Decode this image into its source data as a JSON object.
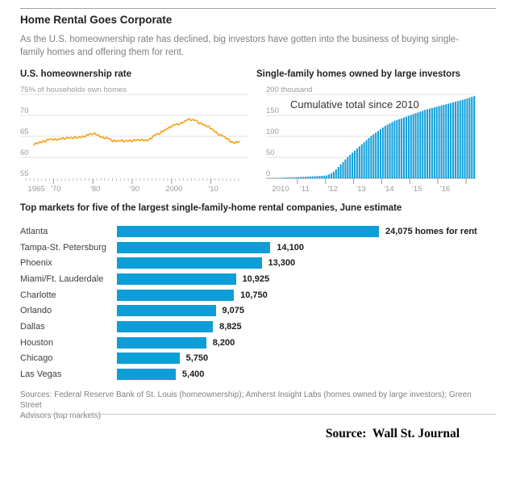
{
  "header": {
    "title": "Home Rental Goes Corporate",
    "subtitle": "As the U.S. homeownership rate has declined, big investors have gotten into the business of buying single-family homes and offering them for rent."
  },
  "colors": {
    "line_orange": "#f5a41f",
    "bar_blue": "#0d9dd8",
    "gridline": "#e2e2e2",
    "axis_gray": "#9b9b9b"
  },
  "footer": {
    "sources_line1": "Sources: Federal Reserve Bank of St. Louis (homeownership); Amherst Insight Labs (homes owned by large investors); Green Street",
    "sources_line2": "Advisors (top markets)",
    "attribution": "Source:  Wall St. Journal"
  },
  "chart_data": [
    {
      "type": "line",
      "title": "U.S. homeownership rate",
      "ylabel": "% of households own homes",
      "ylim": [
        55,
        75
      ],
      "y_ticks": [
        75,
        70,
        65,
        60,
        55
      ],
      "y_tick_labels": [
        "75% of households own homes",
        "70",
        "65",
        "60",
        "55"
      ],
      "x_tick_years": [
        1965,
        1970,
        1980,
        1990,
        2000,
        2010
      ],
      "x_tick_labels": [
        "1965",
        "'70",
        "'80",
        "'90",
        "2000",
        "'10"
      ],
      "start_year": 1965,
      "end_year": 2017,
      "frequency_note": "quarterly with seasonal wiggle",
      "annual_values": [
        63,
        63.4,
        63.6,
        63.9,
        64.3,
        64.2,
        64.2,
        64.4,
        64.5,
        64.6,
        64.6,
        64.7,
        64.8,
        65,
        65.4,
        65.6,
        65.4,
        64.8,
        64.6,
        64.5,
        63.9,
        63.8,
        64,
        63.8,
        63.9,
        63.9,
        64.1,
        64.1,
        64,
        64,
        64.7,
        65.4,
        65.7,
        66.3,
        66.8,
        67.4,
        67.8,
        67.9,
        68.3,
        69,
        68.9,
        68.8,
        68.2,
        67.8,
        67.4,
        66.9,
        66.1,
        65.4,
        65.1,
        64.5,
        63.7,
        63.4,
        63.7
      ],
      "color": "#f5a41f"
    },
    {
      "type": "bar",
      "title": "Single-family homes owned by large investors",
      "annotation": "Cumulative total since 2010",
      "ylabel": "thousand",
      "ylim": [
        0,
        200
      ],
      "y_ticks": [
        200,
        150,
        100,
        50,
        0
      ],
      "y_tick_labels": [
        "200 thousand",
        "150",
        "100",
        "50",
        "0"
      ],
      "x_tick_labels": [
        "2010",
        "'11",
        "'12",
        "'13",
        "'14",
        "'15",
        "'16"
      ],
      "start_year": 2010,
      "frequency_note": "monthly, Jan 2010 - Apr 2017",
      "values": [
        0.3,
        0.5,
        0.7,
        0.9,
        1.1,
        1.3,
        1.5,
        1.7,
        1.9,
        2.1,
        2.3,
        2.5,
        2.8,
        3.1,
        3.4,
        3.7,
        4,
        4.3,
        4.6,
        4.9,
        5.2,
        5.5,
        5.8,
        6.2,
        7,
        9,
        12,
        16,
        21,
        27,
        33,
        39,
        45,
        51,
        56,
        61,
        66,
        71,
        76,
        81,
        86,
        91,
        96,
        101,
        105,
        109,
        113,
        117,
        121,
        125,
        128,
        131,
        134,
        137,
        139,
        141,
        143,
        145,
        147,
        149,
        151,
        153,
        155,
        157,
        159,
        161,
        163,
        164.5,
        166,
        167.5,
        169,
        170.5,
        172,
        173.5,
        175,
        176.5,
        178,
        179.5,
        181,
        182.5,
        184,
        185.5,
        187,
        188.5,
        190,
        192,
        194,
        196
      ],
      "color": "#0d9dd8"
    },
    {
      "type": "hbar",
      "title": "Top markets for five of the largest single-family-home rental companies, June estimate",
      "categories": [
        "Atlanta",
        "Tampa-St. Petersburg",
        "Phoenix",
        "Miami/Ft. Lauderdale",
        "Charlotte",
        "Orlando",
        "Dallas",
        "Houston",
        "Chicago",
        "Las Vegas"
      ],
      "values": [
        24075,
        14100,
        13300,
        10925,
        10750,
        9075,
        8825,
        8200,
        5750,
        5400
      ],
      "value_labels": [
        "24,075 homes for rent",
        "14,100",
        "13,300",
        "10,925",
        "10,750",
        "9,075",
        "8,825",
        "8,200",
        "5,750",
        "5,400"
      ],
      "xlim": [
        0,
        24075
      ],
      "color": "#0d9dd8"
    }
  ]
}
